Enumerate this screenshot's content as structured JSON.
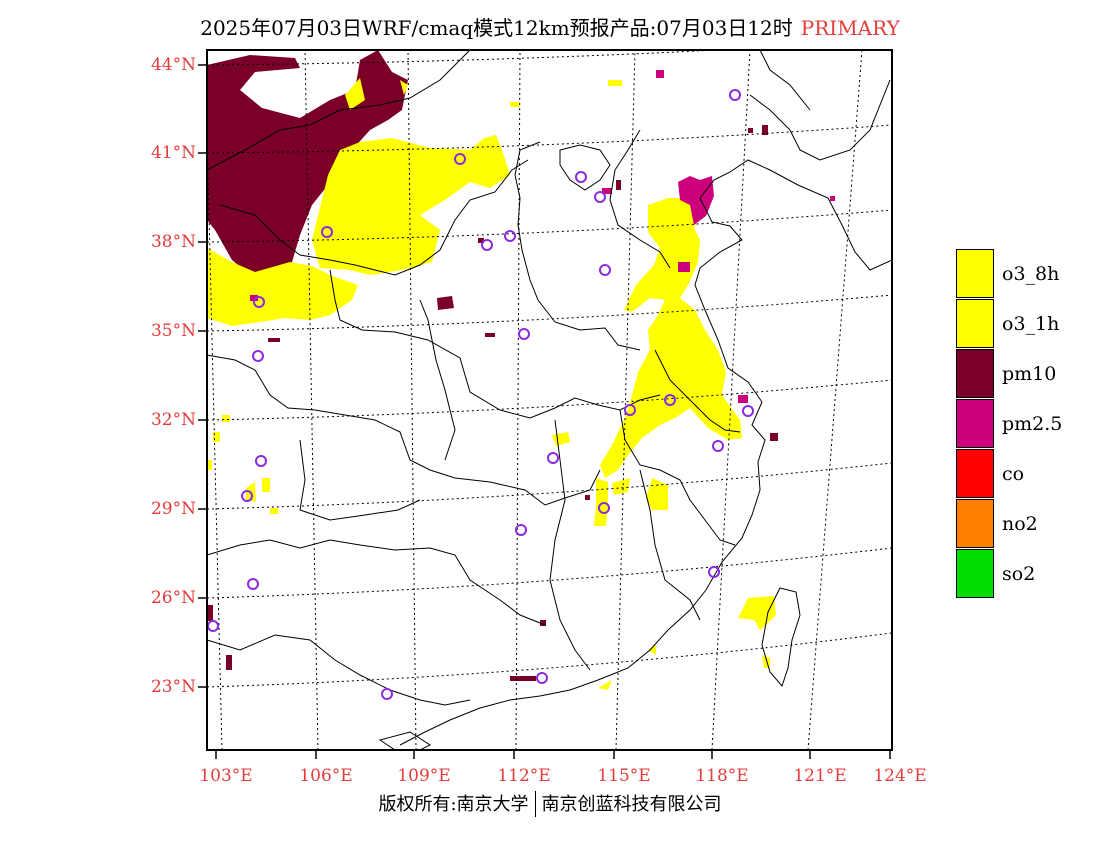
{
  "title": {
    "main": "2025年07月03日WRF/cmaq模式12km预报产品:07月03日12时",
    "tag": "PRIMARY"
  },
  "axes": {
    "lat_labels": [
      "44°N",
      "41°N",
      "38°N",
      "35°N",
      "32°N",
      "29°N",
      "26°N",
      "23°N"
    ],
    "lon_labels": [
      "103°E",
      "106°E",
      "109°E",
      "112°E",
      "115°E",
      "118°E",
      "121°E",
      "124°E"
    ]
  },
  "legend": [
    {
      "label": "o3_8h",
      "color": "#ffff00"
    },
    {
      "label": "o3_1h",
      "color": "#ffff00"
    },
    {
      "label": "pm10",
      "color": "#7a0028"
    },
    {
      "label": "pm2.5",
      "color": "#cc007a"
    },
    {
      "label": "co",
      "color": "#ff0000"
    },
    {
      "label": "no2",
      "color": "#ff7f00"
    },
    {
      "label": "so2",
      "color": "#00dd00"
    }
  ],
  "copyright": {
    "left": "版权所有:南京大学",
    "right": "南京创蓝科技有限公司"
  },
  "colors": {
    "o3": "#ffff00",
    "pm10": "#7a0028",
    "pm25": "#cc007a",
    "marker": "#8a2be2",
    "axis_label": "#e53b3b"
  }
}
